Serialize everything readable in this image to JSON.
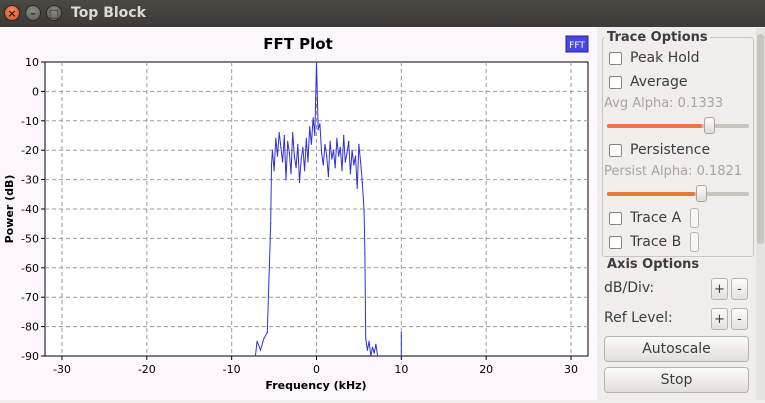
{
  "window": {
    "title": "Top Block",
    "close_glyph": "×",
    "min_glyph": "–",
    "max_glyph": "□"
  },
  "chart_data": {
    "type": "line",
    "title": "FFT Plot",
    "xlabel": "Frequency (kHz)",
    "ylabel": "Power (dB)",
    "xlim": [
      -32,
      32
    ],
    "ylim": [
      -90,
      10
    ],
    "xticks": [
      -30,
      -20,
      -10,
      0,
      10,
      20,
      30
    ],
    "yticks": [
      10,
      0,
      -10,
      -20,
      -30,
      -40,
      -50,
      -60,
      -70,
      -80,
      -90
    ],
    "grid": true,
    "legend": {
      "position": "top-right",
      "entries": [
        "FFT"
      ]
    },
    "series": [
      {
        "name": "FFT",
        "color": "#2f2fd6",
        "x": [
          -7.2,
          -7.0,
          -6.6,
          -6.2,
          -5.8,
          -5.4,
          -5.3,
          -5.2,
          -5.0,
          -4.8,
          -4.6,
          -4.4,
          -4.2,
          -4.0,
          -3.8,
          -3.6,
          -3.4,
          -3.2,
          -3.0,
          -2.8,
          -2.6,
          -2.4,
          -2.2,
          -2.0,
          -1.8,
          -1.6,
          -1.4,
          -1.2,
          -1.0,
          -0.8,
          -0.6,
          -0.4,
          -0.2,
          0.0,
          0.2,
          0.4,
          0.6,
          0.8,
          1.0,
          1.2,
          1.4,
          1.6,
          1.8,
          2.0,
          2.2,
          2.4,
          2.6,
          2.8,
          3.0,
          3.2,
          3.4,
          3.6,
          3.8,
          4.0,
          4.2,
          4.4,
          4.6,
          4.8,
          5.0,
          5.2,
          5.4,
          5.6,
          5.7,
          5.8,
          6.0,
          6.2,
          6.4,
          6.6,
          6.8,
          7.0,
          7.2
        ],
        "y": [
          -90,
          -85,
          -88,
          -84,
          -82,
          -45,
          -25,
          -20,
          -27,
          -16,
          -22,
          -14,
          -19,
          -24,
          -15,
          -30,
          -17,
          -21,
          -28,
          -14,
          -22,
          -26,
          -18,
          -31,
          -23,
          -19,
          -27,
          -16,
          -24,
          -12,
          -18,
          -9,
          -15,
          10,
          -13,
          -11,
          -21,
          -25,
          -18,
          -22,
          -29,
          -17,
          -23,
          -20,
          -26,
          -16,
          -22,
          -19,
          -27,
          -15,
          -24,
          -21,
          -17,
          -28,
          -20,
          -25,
          -22,
          -33,
          -18,
          -24,
          -31,
          -40,
          -55,
          -84,
          -88,
          -85,
          -90,
          -87,
          -89,
          -86,
          -90
        ]
      },
      {
        "name": "FFT",
        "color": "#2f2fd6",
        "x": [
          10.0,
          10.0
        ],
        "y": [
          -90,
          -82
        ]
      }
    ]
  },
  "trace_options": {
    "title": "Trace Options",
    "peak_hold": {
      "label": "Peak Hold",
      "checked": false
    },
    "average": {
      "label": "Average",
      "checked": false
    },
    "avg_alpha_label": "Avg Alpha: 0.1333",
    "avg_alpha_value": 0.67,
    "persistence": {
      "label": "Persistence",
      "checked": false
    },
    "persist_alpha_label": "Persist Alpha: 0.1821",
    "persist_alpha_value": 0.62,
    "trace_a": {
      "label": "Trace A",
      "checked": false
    },
    "trace_b": {
      "label": "Trace B",
      "checked": false
    },
    "accent_color": "#e8763f"
  },
  "axis_options": {
    "title": "Axis Options",
    "db_div_label": "dB/Div:",
    "ref_level_label": "Ref Level:",
    "plus": "+",
    "minus": "-"
  },
  "buttons": {
    "autoscale": "Autoscale",
    "stop": "Stop"
  }
}
